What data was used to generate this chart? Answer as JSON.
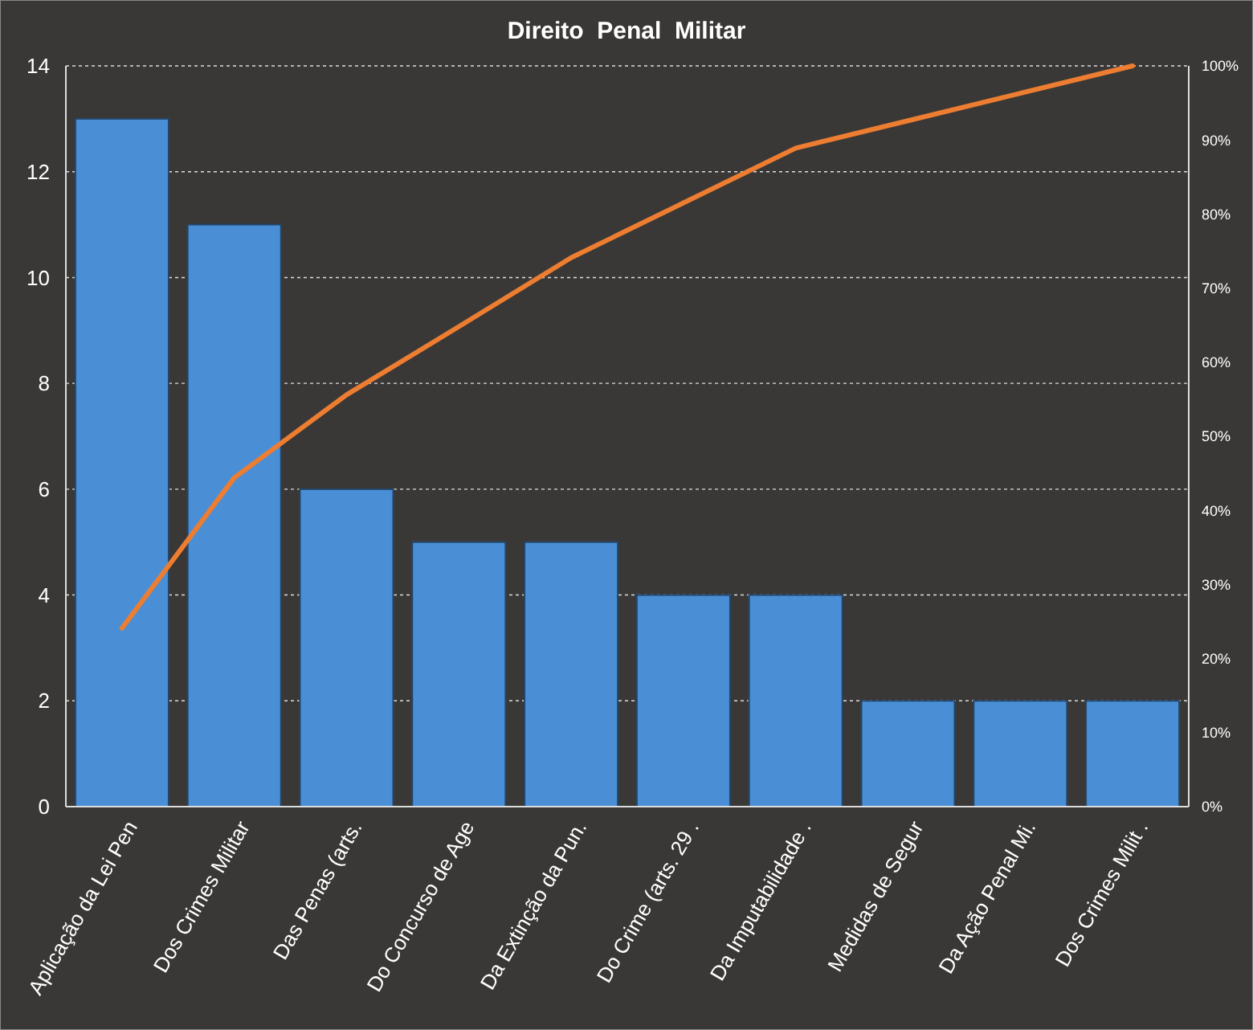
{
  "chart_data": {
    "type": "bar",
    "title": "Direito  Penal  Militar",
    "categories": [
      "Aplicação da Lei Pen",
      "Dos Crimes Militar",
      "Das Penas (arts.",
      "Do Concurso de Age",
      "Da Extinção da Pun.",
      "Do Crime (arts. 29 .",
      "Da Imputabilidade .",
      "Medidas de Segur",
      "Da Ação Penal Mi.",
      "Dos Crimes Milit ."
    ],
    "series": [
      {
        "color": "#4a8fd6",
        "values": [
          13,
          11,
          6,
          5,
          5,
          4,
          4,
          2,
          2,
          2
        ]
      },
      {
        "type": "line",
        "axis": "y2",
        "color": "#ed7d31",
        "values": [
          24.1,
          44.4,
          55.6,
          64.8,
          74.1,
          81.5,
          88.9,
          92.6,
          96.3,
          100
        ]
      }
    ],
    "ylim": [
      0,
      14
    ],
    "yticks": [
      0,
      2,
      4,
      6,
      8,
      10,
      12,
      14
    ],
    "y2lim": [
      0,
      100
    ],
    "y2ticks": [
      {
        "value": 0,
        "label": "0%"
      },
      {
        "value": 10,
        "label": "10%"
      },
      {
        "value": 20,
        "label": "20%"
      },
      {
        "value": 30,
        "label": "30%"
      },
      {
        "value": 40,
        "label": "40%"
      },
      {
        "value": 50,
        "label": "50%"
      },
      {
        "value": 60,
        "label": "60%"
      },
      {
        "value": 70,
        "label": "70%"
      },
      {
        "value": 80,
        "label": "80%"
      },
      {
        "value": 90,
        "label": "90%"
      },
      {
        "value": 100,
        "label": "100%"
      }
    ],
    "grid": "y"
  }
}
